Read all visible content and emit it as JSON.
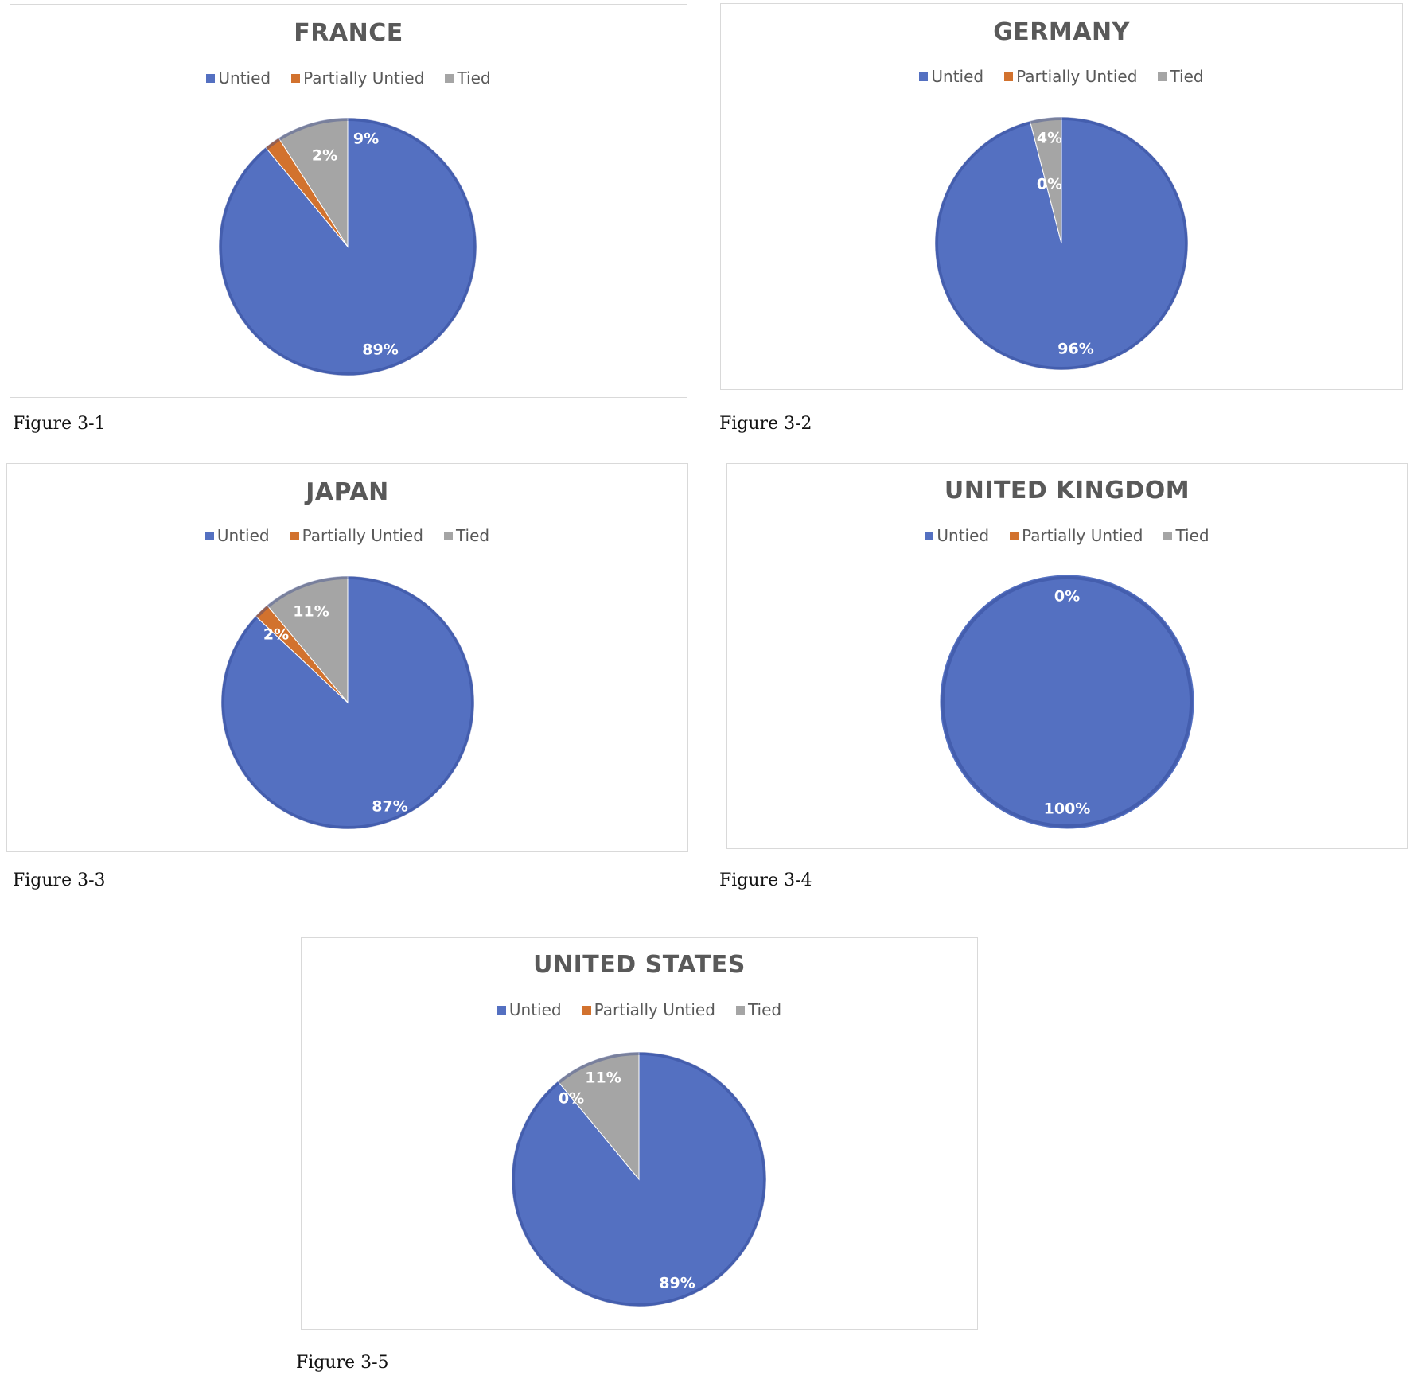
{
  "legend_labels": [
    "Untied",
    "Partially Untied",
    "Tied"
  ],
  "colors": {
    "untied": "#5470c1",
    "partially_untied": "#d2722e",
    "tied": "#a5a5a5",
    "title": "#595959",
    "border": "#d9d9d9"
  },
  "chart_data": [
    {
      "type": "pie",
      "title": "FRANCE",
      "caption": "Figure 3-1",
      "slices": [
        {
          "name": "Untied",
          "value": 89,
          "label": "89%"
        },
        {
          "name": "Partially Untied",
          "value": 2,
          "label": "2%"
        },
        {
          "name": "Tied",
          "value": 9,
          "label": "9%"
        }
      ],
      "legend_position": "top"
    },
    {
      "type": "pie",
      "title": "GERMANY",
      "caption": "Figure 3-2",
      "slices": [
        {
          "name": "Untied",
          "value": 96,
          "label": "96%"
        },
        {
          "name": "Partially Untied",
          "value": 0,
          "label": "0%"
        },
        {
          "name": "Tied",
          "value": 4,
          "label": "4%"
        }
      ],
      "legend_position": "top"
    },
    {
      "type": "pie",
      "title": "JAPAN",
      "caption": "Figure 3-3",
      "slices": [
        {
          "name": "Untied",
          "value": 87,
          "label": "87%"
        },
        {
          "name": "Partially Untied",
          "value": 2,
          "label": "2%"
        },
        {
          "name": "Tied",
          "value": 11,
          "label": "11%"
        }
      ],
      "legend_position": "top"
    },
    {
      "type": "pie",
      "title": "UNITED KINGDOM",
      "caption": "Figure 3-4",
      "slices": [
        {
          "name": "Untied",
          "value": 100,
          "label": "100%"
        },
        {
          "name": "Partially Untied",
          "value": 0,
          "label": "0%"
        },
        {
          "name": "Tied",
          "value": 0,
          "label": ""
        }
      ],
      "legend_position": "top"
    },
    {
      "type": "pie",
      "title": "UNITED STATES",
      "caption": "Figure 3-5",
      "slices": [
        {
          "name": "Untied",
          "value": 89,
          "label": "89%"
        },
        {
          "name": "Partially Untied",
          "value": 0,
          "label": "0%"
        },
        {
          "name": "Tied",
          "value": 11,
          "label": "11%"
        }
      ],
      "legend_position": "top"
    }
  ]
}
